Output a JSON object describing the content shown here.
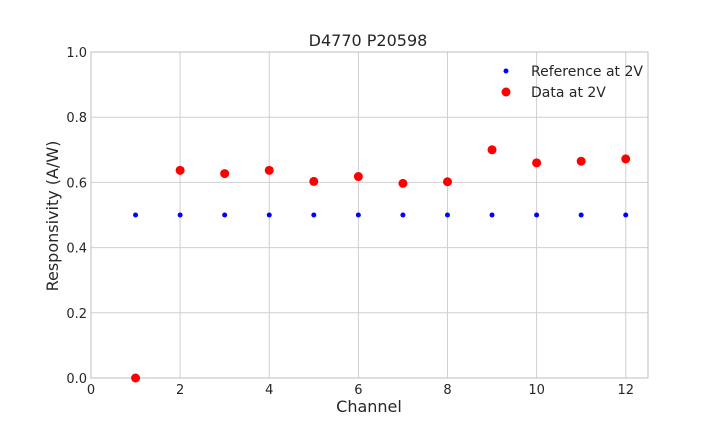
{
  "chart_data": {
    "type": "scatter",
    "title": "D4770 P20598",
    "xlabel": "Channel",
    "ylabel": "Responsivity (A/W)",
    "xlim": [
      0,
      12.5
    ],
    "ylim": [
      0,
      1.0
    ],
    "xticks": [
      0,
      2,
      4,
      6,
      8,
      10,
      12
    ],
    "yticks": [
      0.0,
      0.2,
      0.4,
      0.6,
      0.8,
      1.0
    ],
    "grid": true,
    "legend": "top-right",
    "series": [
      {
        "name": "Reference at 2V",
        "color": "#0000ff",
        "marker": "small-dot",
        "x": [
          1,
          2,
          3,
          4,
          5,
          6,
          7,
          8,
          9,
          10,
          11,
          12
        ],
        "y": [
          0.5,
          0.5,
          0.5,
          0.5,
          0.5,
          0.5,
          0.5,
          0.5,
          0.5,
          0.5,
          0.5,
          0.5
        ]
      },
      {
        "name": "Data at 2V",
        "color": "#ff0000",
        "marker": "large-dot",
        "x": [
          1,
          2,
          3,
          4,
          5,
          6,
          7,
          8,
          9,
          10,
          11,
          12
        ],
        "y": [
          0.0,
          0.637,
          0.627,
          0.637,
          0.603,
          0.618,
          0.597,
          0.602,
          0.7,
          0.66,
          0.665,
          0.672
        ]
      }
    ]
  }
}
